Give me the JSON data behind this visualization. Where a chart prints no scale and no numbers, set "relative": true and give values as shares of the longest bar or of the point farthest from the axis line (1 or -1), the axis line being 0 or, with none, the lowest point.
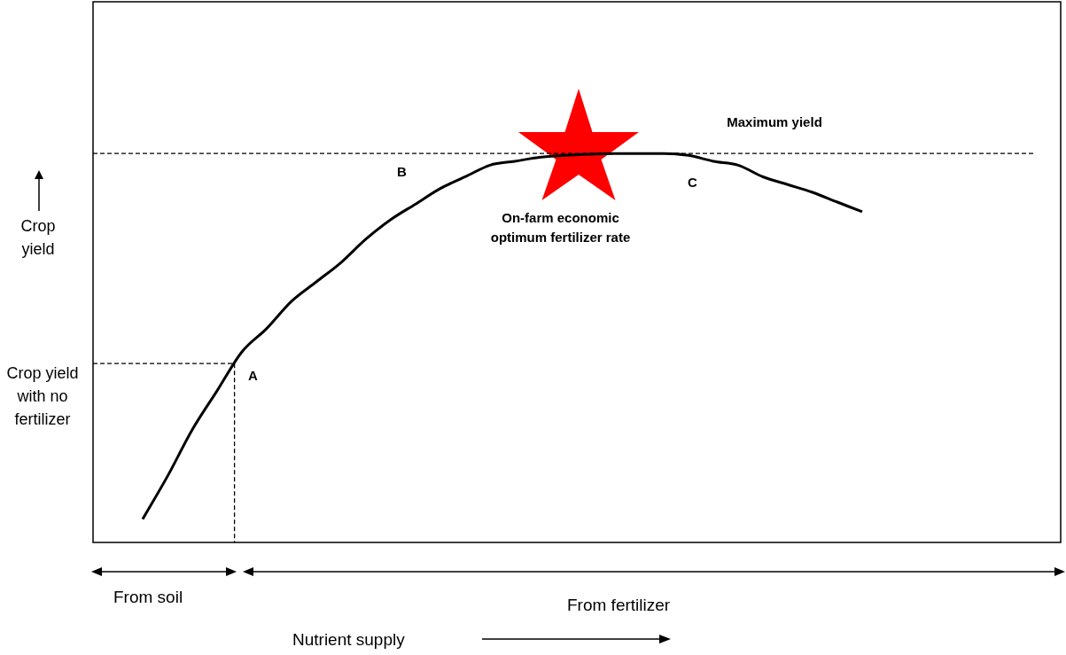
{
  "chart_data": {
    "type": "line",
    "relative": true,
    "ylabel": "Crop yield",
    "categories": [
      null,
      null,
      null,
      null,
      null,
      null,
      null,
      null,
      null,
      null,
      null,
      null,
      null,
      null,
      null,
      null,
      null,
      null,
      null,
      null,
      null,
      null,
      null,
      null,
      null,
      null,
      null,
      null,
      null,
      null,
      null,
      null,
      null,
      null,
      null,
      null,
      null,
      null,
      null,
      null
    ],
    "series": [
      {
        "color": "#000000",
        "values": [
          null,
          null,
          0.06,
          0.17,
          0.29,
          0.39,
          0.49,
          0.55,
          0.62,
          0.67,
          0.72,
          0.78,
          0.83,
          0.87,
          0.91,
          0.94,
          0.97,
          0.98,
          0.99,
          0.995,
          0.998,
          1,
          1,
          1,
          0.995,
          0.98,
          0.97,
          0.94,
          0.92,
          0.9,
          0.875,
          0.85,
          null,
          null,
          null,
          null,
          null,
          null,
          null,
          null
        ]
      }
    ],
    "marker": "none",
    "line_style": "solid",
    "legend": false,
    "ref_lines": [
      {
        "axis": "y",
        "value": 1,
        "label": "Maximum yield",
        "color": "#000000",
        "line_style": "dashed"
      },
      {
        "axis": "y",
        "value": 0.46,
        "color": "#000000",
        "line_style": "dashed"
      }
    ],
    "annotations": [
      "A",
      "B",
      "C",
      "On-farm economic optimum fertilizer rate",
      "Crop yield with no fertilizer",
      "From soil",
      "From fertilizer",
      "Nutrient supply"
    ]
  }
}
